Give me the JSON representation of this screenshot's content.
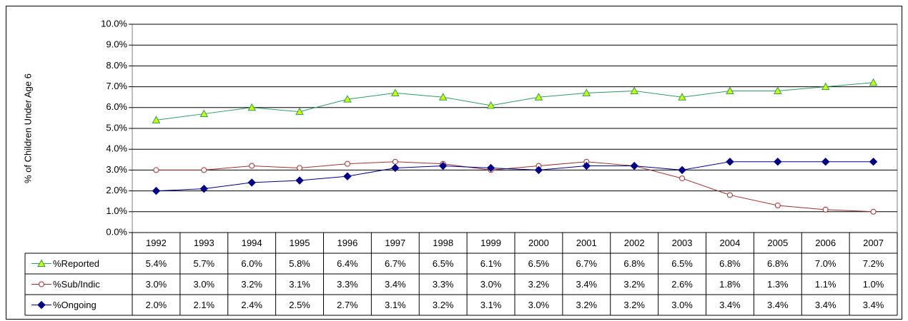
{
  "chart_data": {
    "type": "line",
    "y_axis_label": "% of Children Under Age 6",
    "categories": [
      "1992",
      "1993",
      "1994",
      "1995",
      "1996",
      "1997",
      "1998",
      "1999",
      "2000",
      "2001",
      "2002",
      "2003",
      "2004",
      "2005",
      "2006",
      "2007"
    ],
    "series": [
      {
        "name": "%Reported",
        "color": "#339966",
        "marker": "triangle",
        "marker_fill": "#ccff00",
        "values": [
          5.4,
          5.7,
          6.0,
          5.8,
          6.4,
          6.7,
          6.5,
          6.1,
          6.5,
          6.7,
          6.8,
          6.5,
          6.8,
          6.8,
          7.0,
          7.2
        ],
        "value_labels": [
          "5.4%",
          "5.7%",
          "6.0%",
          "5.8%",
          "6.4%",
          "6.7%",
          "6.5%",
          "6.1%",
          "6.5%",
          "6.7%",
          "6.8%",
          "6.5%",
          "6.8%",
          "6.8%",
          "7.0%",
          "7.2%"
        ]
      },
      {
        "name": "%Sub/Indic",
        "color": "#993333",
        "marker": "circle",
        "marker_fill": "#ffffff",
        "values": [
          3.0,
          3.0,
          3.2,
          3.1,
          3.3,
          3.4,
          3.3,
          3.0,
          3.2,
          3.4,
          3.2,
          2.6,
          1.8,
          1.3,
          1.1,
          1.0
        ],
        "value_labels": [
          "3.0%",
          "3.0%",
          "3.2%",
          "3.1%",
          "3.3%",
          "3.4%",
          "3.3%",
          "3.0%",
          "3.2%",
          "3.4%",
          "3.2%",
          "2.6%",
          "1.8%",
          "1.3%",
          "1.1%",
          "1.0%"
        ]
      },
      {
        "name": "%Ongoing",
        "color": "#000080",
        "marker": "diamond",
        "marker_fill": "#000080",
        "values": [
          2.0,
          2.1,
          2.4,
          2.5,
          2.7,
          3.1,
          3.2,
          3.1,
          3.0,
          3.2,
          3.2,
          3.0,
          3.4,
          3.4,
          3.4,
          3.4
        ],
        "value_labels": [
          "2.0%",
          "2.1%",
          "2.4%",
          "2.5%",
          "2.7%",
          "3.1%",
          "3.2%",
          "3.1%",
          "3.0%",
          "3.2%",
          "3.2%",
          "3.0%",
          "3.4%",
          "3.4%",
          "3.4%",
          "3.4%"
        ]
      }
    ],
    "ylim": [
      0,
      10
    ],
    "yticks": [
      {
        "value": 0,
        "label": "0.0%"
      },
      {
        "value": 1,
        "label": "1.0%"
      },
      {
        "value": 2,
        "label": "2.0%"
      },
      {
        "value": 3,
        "label": "3.0%"
      },
      {
        "value": 4,
        "label": "4.0%"
      },
      {
        "value": 5,
        "label": "5.0%"
      },
      {
        "value": 6,
        "label": "6.0%"
      },
      {
        "value": 7,
        "label": "7.0%"
      },
      {
        "value": 8,
        "label": "8.0%"
      },
      {
        "value": 9,
        "label": "9.0%"
      },
      {
        "value": 10,
        "label": "10.0%"
      }
    ],
    "grid": true
  }
}
